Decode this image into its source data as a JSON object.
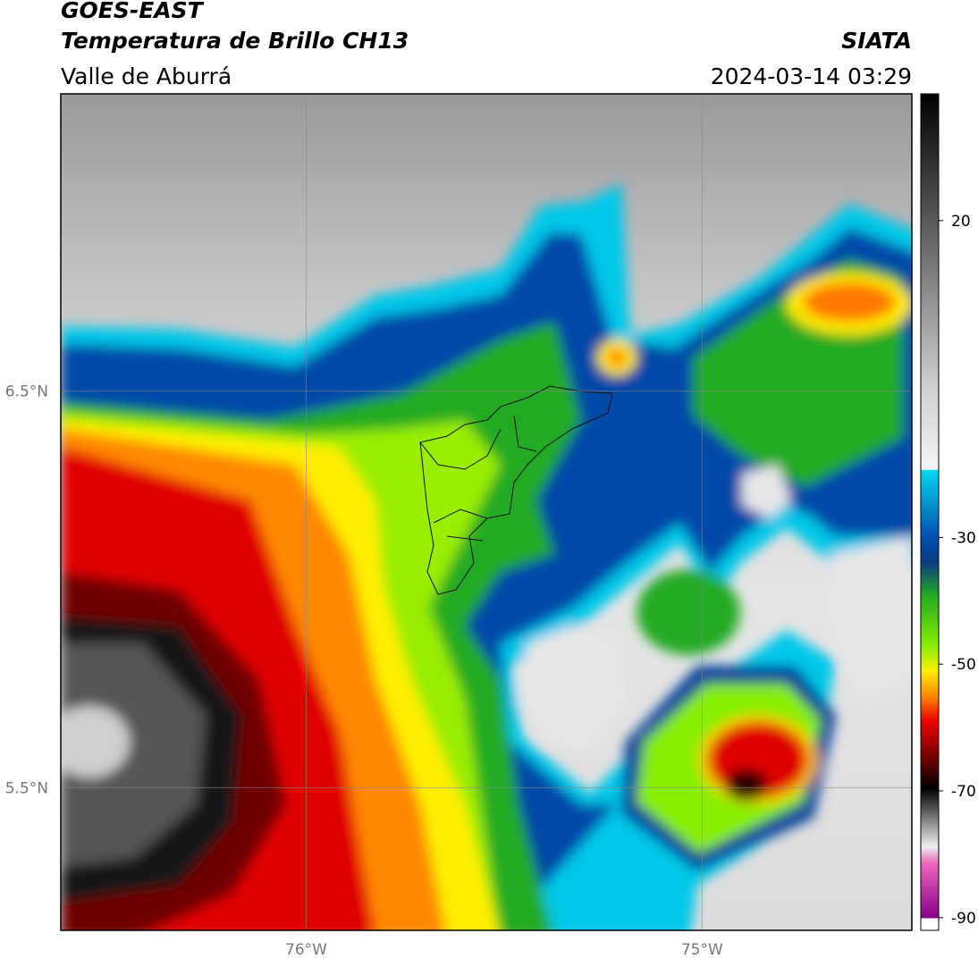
{
  "header": {
    "satellite": "GOES-EAST",
    "product": "Temperatura de Brillo CH13",
    "region": "Valle de Aburrá",
    "source": "SIATA",
    "datetime": "2024-03-14 03:29"
  },
  "map": {
    "xlim": [
      -76.62,
      -74.47
    ],
    "ylim": [
      5.14,
      7.25
    ],
    "lat_ticks": [
      {
        "value": 6.5,
        "label": "6.5°N"
      },
      {
        "value": 5.5,
        "label": "5.5°N"
      }
    ],
    "lon_ticks": [
      {
        "value": -76,
        "label": "76°W"
      },
      {
        "value": -75,
        "label": "75°W"
      }
    ],
    "grid": true
  },
  "colorbar": {
    "clim": [
      -92,
      40
    ],
    "ticks": [
      20,
      -30,
      -50,
      -70,
      -90
    ]
  }
}
